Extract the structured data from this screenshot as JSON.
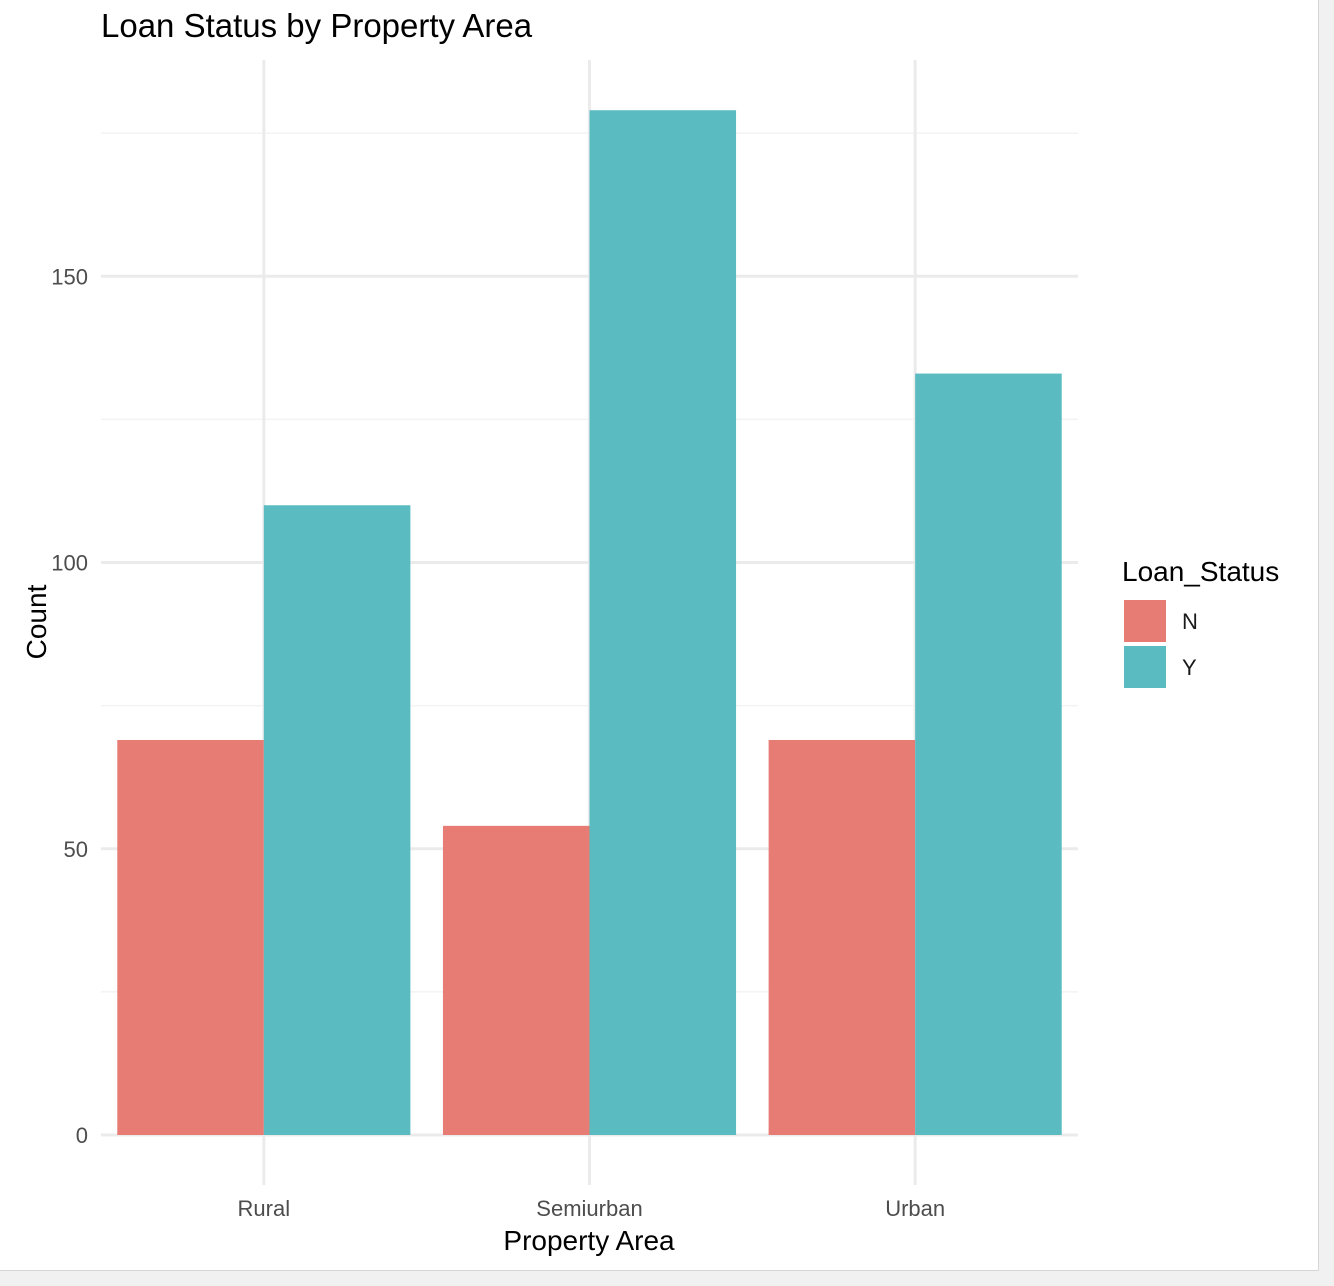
{
  "chart_data": {
    "type": "bar",
    "title": "Loan Status by Property Area",
    "xlabel": "Property Area",
    "ylabel": "Count",
    "categories": [
      "Rural",
      "Semiurban",
      "Urban"
    ],
    "series": [
      {
        "name": "N",
        "values": [
          69,
          54,
          69
        ],
        "color": "#E67C73"
      },
      {
        "name": "Y",
        "values": [
          110,
          179,
          133
        ],
        "color": "#5ABBC1"
      }
    ],
    "ylim": [
      0,
      179
    ],
    "yticks": [
      0,
      50,
      100,
      150
    ],
    "grid": true,
    "legend": {
      "title": "Loan_Status",
      "placement": "right"
    }
  }
}
